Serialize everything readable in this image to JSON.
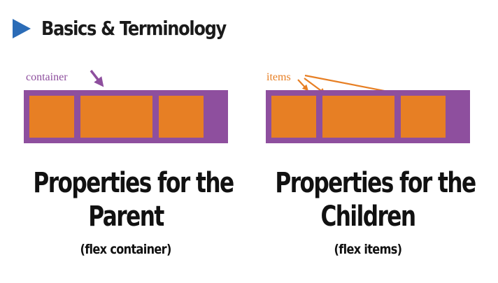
{
  "header": {
    "title": "Basics & Terminology"
  },
  "left": {
    "label": "container",
    "heading_line1": "Properties for the",
    "heading_line2": "Parent",
    "subheading": "(flex container)"
  },
  "right": {
    "label": "items",
    "heading_line1": "Properties for the",
    "heading_line2": "Children",
    "subheading": "(flex items)"
  },
  "colors": {
    "accent_blue": "#2b6cb7",
    "container_purple": "#8e4f9e",
    "item_orange": "#e77f24"
  }
}
